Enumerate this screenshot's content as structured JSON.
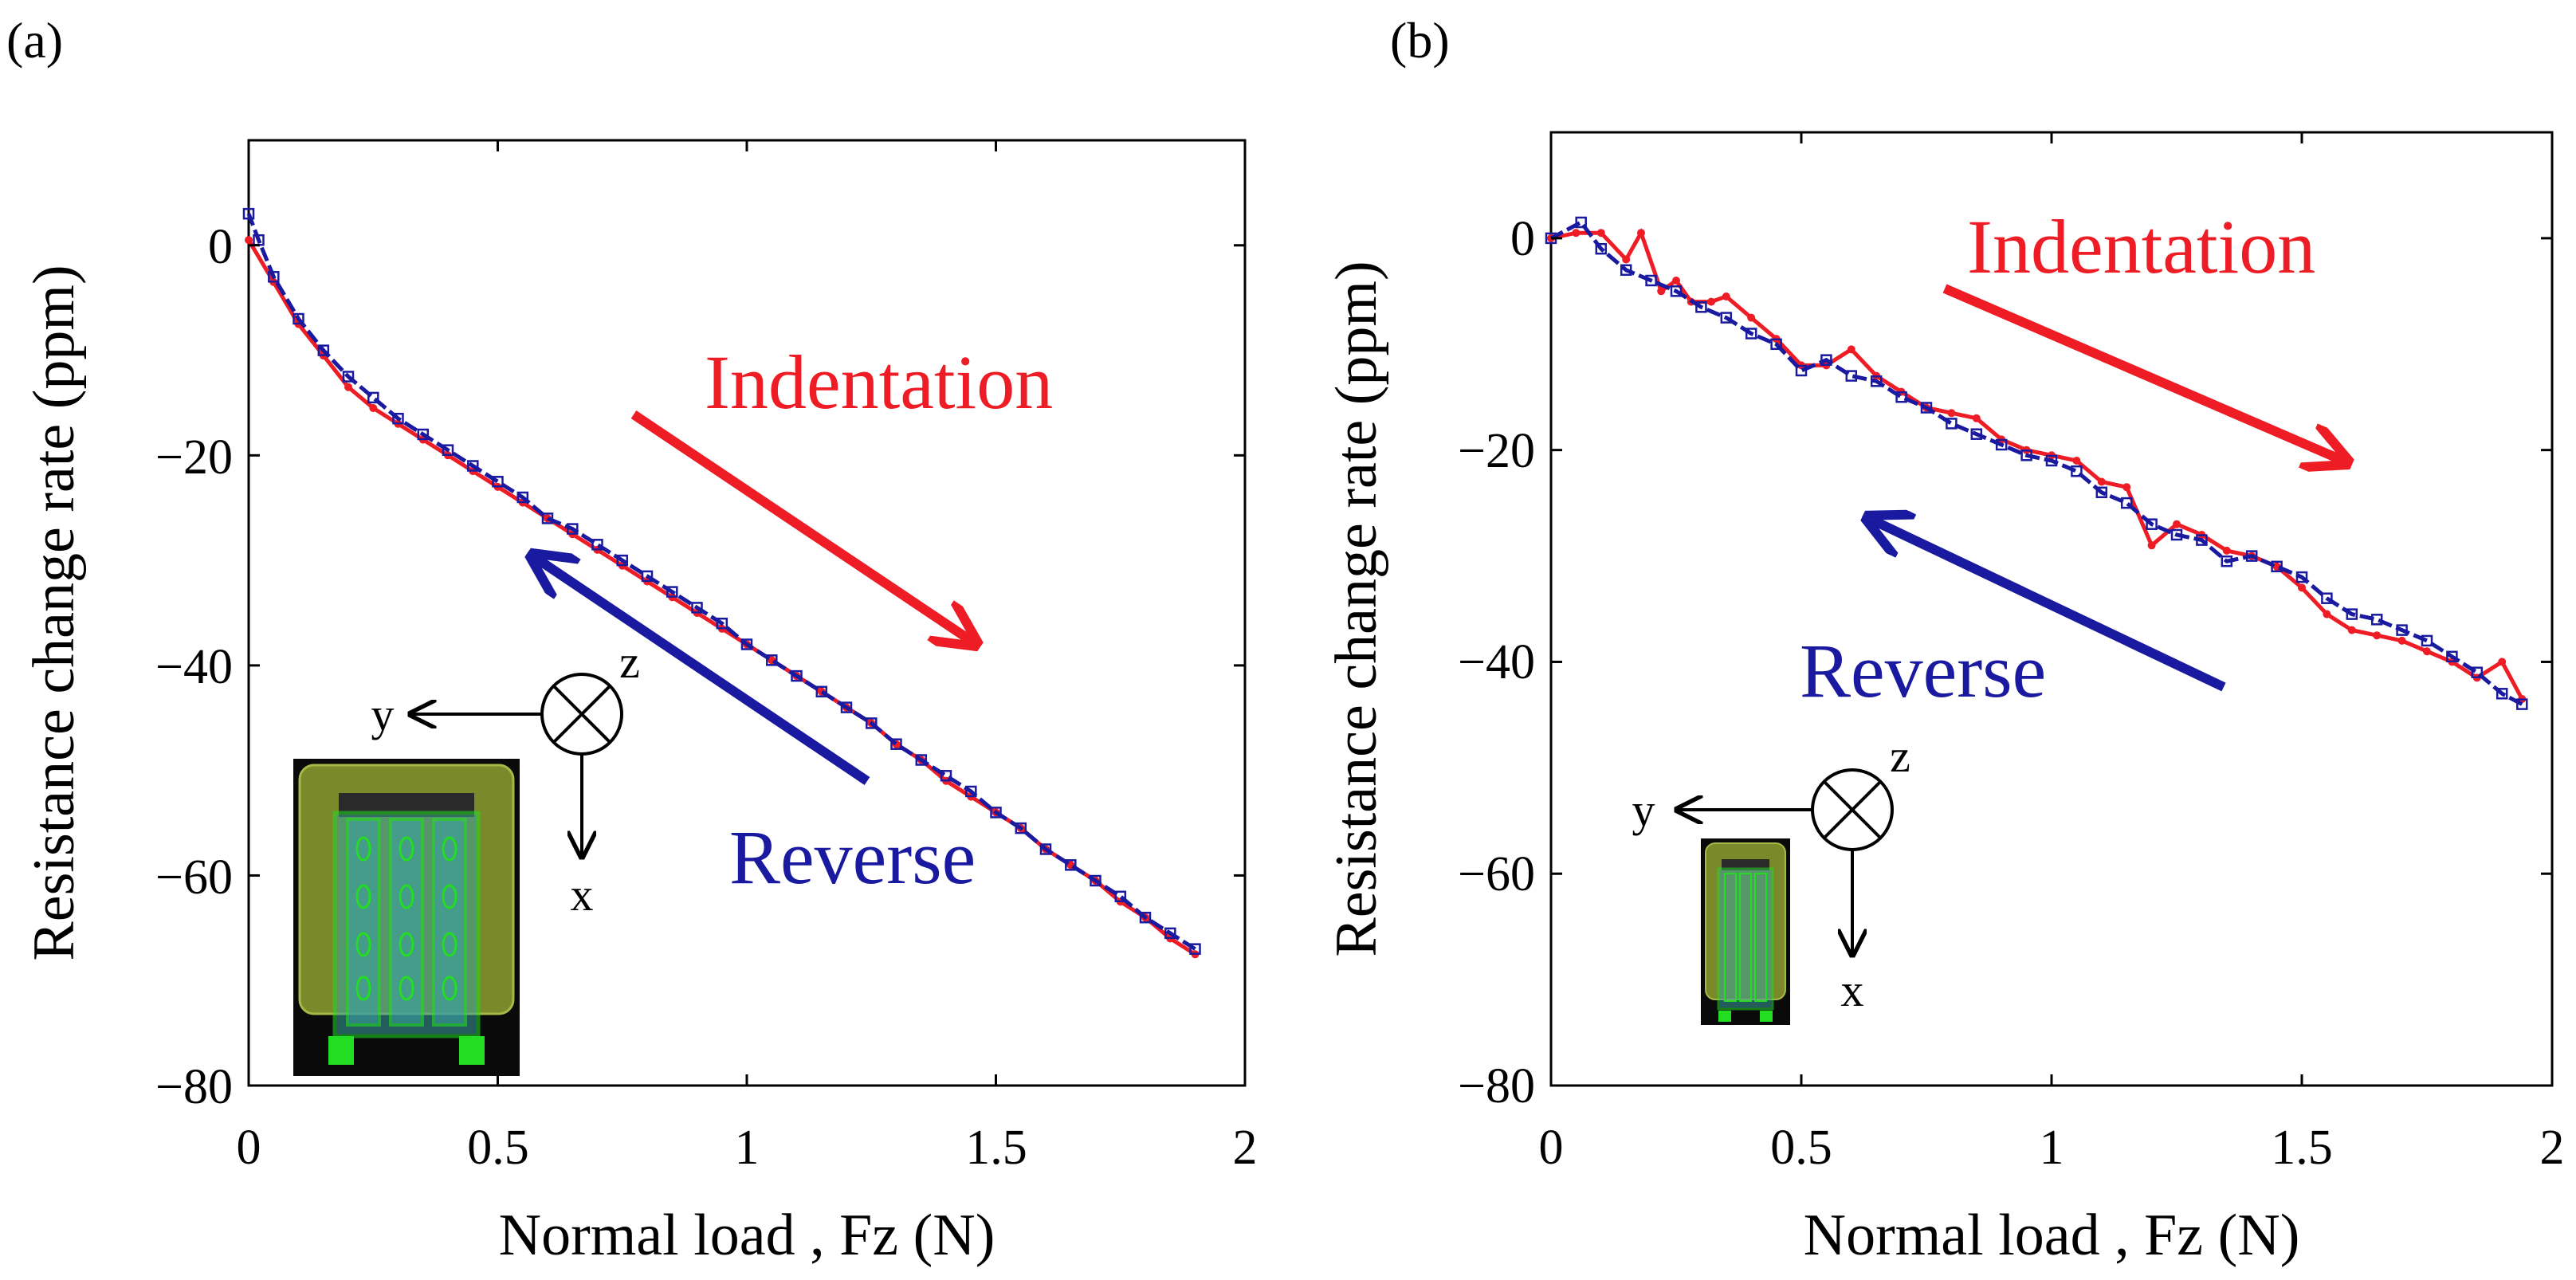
{
  "colors": {
    "indentation": "#ee1c25",
    "reverse": "#1a1aa0",
    "axis": "#000000",
    "chip_bg": "#0a0a0a",
    "chip_olive": "#7a8a2a",
    "chip_green": "#22dd22",
    "chip_cyan": "#3aa0a0"
  },
  "chart_data": [
    {
      "type": "line",
      "panel_label": "(a)",
      "xlabel": "Normal load , Fz (N)",
      "ylabel": "Resistance change rate (ppm)",
      "xlim": [
        0,
        2
      ],
      "ylim": [
        -80,
        10
      ],
      "xticks": [
        0,
        0.5,
        1,
        1.5,
        2
      ],
      "xtick_labels": [
        "0",
        "0.5",
        "1",
        "1.5",
        "2"
      ],
      "yticks": [
        0,
        -20,
        -40,
        -60,
        -80
      ],
      "ytick_labels": [
        "0",
        "−20",
        "−40",
        "−60",
        "−80"
      ],
      "annotations": {
        "indentation": "Indentation",
        "reverse": "Reverse"
      },
      "axes_icon": {
        "y": "y",
        "x": "x",
        "z": "z"
      },
      "series": [
        {
          "name": "Indentation",
          "marker": "circle",
          "x": [
            0,
            0.05,
            0.1,
            0.15,
            0.2,
            0.25,
            0.3,
            0.35,
            0.4,
            0.45,
            0.5,
            0.55,
            0.6,
            0.65,
            0.7,
            0.75,
            0.8,
            0.85,
            0.9,
            0.95,
            1.0,
            1.05,
            1.1,
            1.15,
            1.2,
            1.25,
            1.3,
            1.35,
            1.4,
            1.45,
            1.5,
            1.55,
            1.6,
            1.65,
            1.7,
            1.75,
            1.8,
            1.85,
            1.9
          ],
          "y": [
            0.5,
            -3.5,
            -7.5,
            -10.5,
            -13.5,
            -15.5,
            -17,
            -18.5,
            -20,
            -21.5,
            -23,
            -24.5,
            -26,
            -27.5,
            -29,
            -30.5,
            -32,
            -33.5,
            -35,
            -36.5,
            -38,
            -39.5,
            -41,
            -42.5,
            -44,
            -45.5,
            -47.5,
            -49,
            -51,
            -52.5,
            -54,
            -55.5,
            -57.5,
            -59,
            -60.5,
            -62.5,
            -64,
            -66,
            -67.5
          ]
        },
        {
          "name": "Reverse",
          "marker": "square",
          "x": [
            1.9,
            1.85,
            1.8,
            1.75,
            1.7,
            1.65,
            1.6,
            1.55,
            1.5,
            1.45,
            1.4,
            1.35,
            1.3,
            1.25,
            1.2,
            1.15,
            1.1,
            1.05,
            1.0,
            0.95,
            0.9,
            0.85,
            0.8,
            0.75,
            0.7,
            0.65,
            0.6,
            0.55,
            0.5,
            0.45,
            0.4,
            0.35,
            0.3,
            0.25,
            0.2,
            0.15,
            0.1,
            0.05,
            0.02,
            0
          ],
          "y": [
            -67,
            -65.5,
            -64,
            -62,
            -60.5,
            -59,
            -57.5,
            -55.5,
            -54,
            -52,
            -50.5,
            -49,
            -47.5,
            -45.5,
            -44,
            -42.5,
            -41,
            -39.5,
            -38,
            -36,
            -34.5,
            -33,
            -31.5,
            -30,
            -28.5,
            -27,
            -26,
            -24,
            -22.5,
            -21,
            -19.5,
            -18,
            -16.5,
            -14.5,
            -12.5,
            -10,
            -7,
            -3,
            0.5,
            3
          ]
        }
      ]
    },
    {
      "type": "line",
      "panel_label": "(b)",
      "xlabel": "Normal load , Fz (N)",
      "ylabel": "Resistance change rate (ppm)",
      "xlim": [
        0,
        2
      ],
      "ylim": [
        -80,
        10
      ],
      "xticks": [
        0,
        0.5,
        1,
        1.5,
        2
      ],
      "xtick_labels": [
        "0",
        "0.5",
        "1",
        "1.5",
        "2"
      ],
      "yticks": [
        0,
        -20,
        -40,
        -60,
        -80
      ],
      "ytick_labels": [
        "0",
        "−20",
        "−40",
        "−60",
        "−80"
      ],
      "annotations": {
        "indentation": "Indentation",
        "reverse": "Reverse"
      },
      "axes_icon": {
        "y": "y",
        "x": "x",
        "z": "z"
      },
      "series": [
        {
          "name": "Indentation",
          "marker": "circle",
          "x": [
            0,
            0.05,
            0.1,
            0.15,
            0.18,
            0.22,
            0.25,
            0.28,
            0.32,
            0.35,
            0.4,
            0.45,
            0.5,
            0.55,
            0.6,
            0.65,
            0.7,
            0.75,
            0.8,
            0.85,
            0.9,
            0.95,
            1.0,
            1.05,
            1.1,
            1.15,
            1.2,
            1.25,
            1.3,
            1.35,
            1.4,
            1.45,
            1.5,
            1.55,
            1.6,
            1.65,
            1.7,
            1.75,
            1.8,
            1.85,
            1.9,
            1.94
          ],
          "y": [
            0,
            0.5,
            0.5,
            -2,
            0.5,
            -5,
            -4,
            -6,
            -6,
            -5.5,
            -7.5,
            -9.5,
            -12,
            -12,
            -10.5,
            -13,
            -14.5,
            -16,
            -16.5,
            -17,
            -19,
            -20,
            -20.5,
            -21,
            -23,
            -23.5,
            -29,
            -27,
            -28,
            -29.5,
            -30,
            -31,
            -33,
            -35.5,
            -37,
            -37.5,
            -38,
            -39,
            -40,
            -41.5,
            -40,
            -43.5
          ]
        },
        {
          "name": "Reverse",
          "marker": "square",
          "x": [
            1.94,
            1.9,
            1.85,
            1.8,
            1.75,
            1.7,
            1.65,
            1.6,
            1.55,
            1.5,
            1.45,
            1.4,
            1.35,
            1.3,
            1.25,
            1.2,
            1.15,
            1.1,
            1.05,
            1.0,
            0.95,
            0.9,
            0.85,
            0.8,
            0.75,
            0.7,
            0.65,
            0.6,
            0.55,
            0.5,
            0.45,
            0.4,
            0.35,
            0.3,
            0.25,
            0.2,
            0.15,
            0.1,
            0.06,
            0
          ],
          "y": [
            -44,
            -43,
            -41,
            -39.5,
            -38,
            -37,
            -36,
            -35.5,
            -34,
            -32,
            -31,
            -30,
            -30.5,
            -28.5,
            -28,
            -27,
            -25,
            -24,
            -22,
            -21,
            -20.5,
            -19.5,
            -18.5,
            -17.5,
            -16,
            -15,
            -13.5,
            -13,
            -11.5,
            -12.5,
            -10,
            -9,
            -7.5,
            -6.5,
            -5,
            -4,
            -3,
            -1,
            1.5,
            0
          ]
        }
      ]
    }
  ]
}
